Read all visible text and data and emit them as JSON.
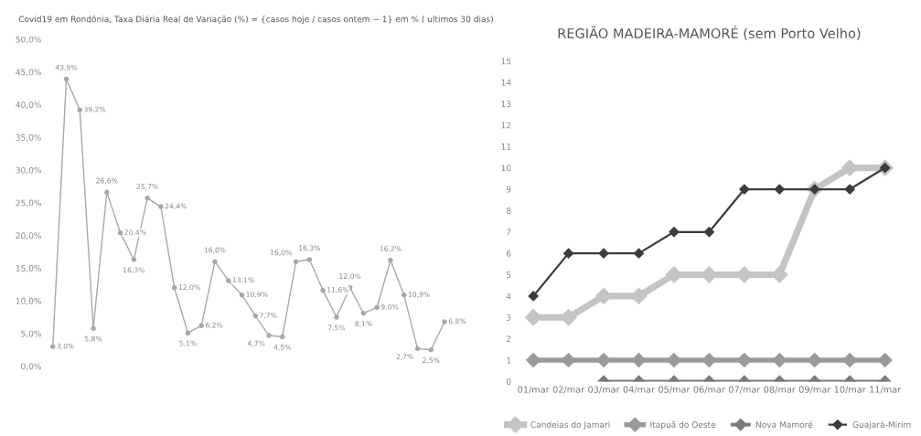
{
  "chart_data": [
    {
      "type": "line",
      "title": "Covid19 em Rondônia, Taxa Diária Real de Variação (%) = {casos hoje / casos ontem − 1} em % ( ultimos 30 dias)",
      "categories": [
        null,
        null,
        null,
        null,
        null,
        null,
        null,
        null,
        null,
        null,
        null,
        null,
        null,
        null,
        null,
        null,
        null,
        null,
        null,
        null,
        null,
        null,
        null,
        null,
        null,
        null,
        null,
        null,
        null,
        null
      ],
      "series": [
        {
          "color": "#a8a8a8",
          "values": [
            3.0,
            43.9,
            39.2,
            5.8,
            26.6,
            20.4,
            16.3,
            25.7,
            24.4,
            12.0,
            5.1,
            6.2,
            16.0,
            13.1,
            10.9,
            7.7,
            4.7,
            4.5,
            16.0,
            16.3,
            11.6,
            7.5,
            12.0,
            8.1,
            9.0,
            16.2,
            10.9,
            2.7,
            2.5,
            6.8
          ],
          "value_labels": [
            "3,0%",
            "43,9%",
            "39,2%",
            "5,8%",
            "26,6%",
            "20,4%",
            "16,3%",
            "25,7%",
            "24,4%",
            "12,0%",
            "5,1%",
            "6,2%",
            "16,0%",
            "13,1%",
            "10,9%",
            "7,7%",
            "4,7%",
            "4,5%",
            "16,0%",
            "16,3%",
            "11,6%",
            "7,5%",
            "12,0%",
            "8,1%",
            "9,0%",
            "16,2%",
            "10,9%",
            "2,7%",
            "2,5%",
            "6,8%"
          ]
        }
      ],
      "ylim": [
        0,
        50
      ],
      "yticks": [
        {
          "value": 0,
          "label": "0,0%"
        },
        {
          "value": 5,
          "label": "5,0%"
        },
        {
          "value": 10,
          "label": "10,0%"
        },
        {
          "value": 15,
          "label": "15,0%"
        },
        {
          "value": 20,
          "label": "20,0%"
        },
        {
          "value": 25,
          "label": "25,0%"
        },
        {
          "value": 30,
          "label": "30,0%"
        },
        {
          "value": 35,
          "label": "35,0%"
        },
        {
          "value": 40,
          "label": "40,0%"
        },
        {
          "value": 45,
          "label": "45,0%"
        },
        {
          "value": 50,
          "label": "50,0%"
        }
      ],
      "marker": "circle",
      "grid": false,
      "legend": false
    },
    {
      "type": "line",
      "title": "REGIÃO MADEIRA-MAMORÉ (sem Porto Velho)",
      "categories": [
        "01/mar",
        "02/mar",
        "03/mar",
        "04/mar",
        "05/mar",
        "06/mar",
        "07/mar",
        "08/mar",
        "09/mar",
        "10/mar",
        "11/mar"
      ],
      "series": [
        {
          "name": "Candeias do Jamari",
          "color": "#c4c4c4",
          "values": [
            3,
            3,
            4,
            4,
            5,
            5,
            5,
            5,
            9,
            10,
            10
          ]
        },
        {
          "name": "Itapuã do Oeste",
          "color": "#9a9a9a",
          "values": [
            1,
            1,
            1,
            1,
            1,
            1,
            1,
            1,
            1,
            1,
            1
          ]
        },
        {
          "name": "Nova Mamoré",
          "color": "#7a7a7a",
          "values": [
            null,
            null,
            0,
            0,
            0,
            0,
            0,
            0,
            0,
            0,
            0
          ]
        },
        {
          "name": "Guajará-Mirim",
          "color": "#3c3c3c",
          "values": [
            4,
            6,
            6,
            6,
            7,
            7,
            9,
            9,
            9,
            9,
            10
          ]
        }
      ],
      "ylim": [
        0,
        15
      ],
      "yticks": [
        0,
        1,
        2,
        3,
        4,
        5,
        6,
        7,
        8,
        9,
        10,
        11,
        12,
        13,
        14,
        15
      ],
      "marker": "diamond",
      "grid": false,
      "legend": "bottom"
    }
  ]
}
